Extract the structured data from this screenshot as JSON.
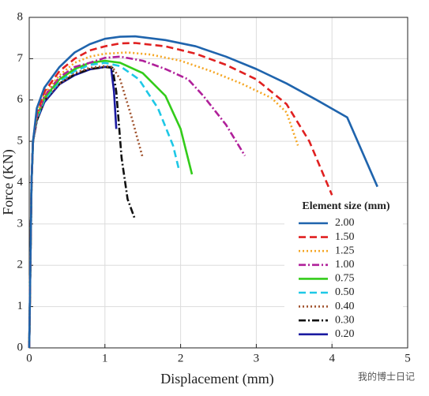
{
  "chart_data": {
    "type": "line",
    "xlabel": "Displacement (mm)",
    "ylabel": "Force (KN)",
    "xlim": [
      0,
      5
    ],
    "ylim": [
      0,
      8
    ],
    "xticks": [
      0,
      1,
      2,
      3,
      4,
      5
    ],
    "yticks": [
      0,
      1,
      2,
      3,
      4,
      5,
      6,
      7,
      8
    ],
    "grid": true,
    "legend_title": "Element size (mm)",
    "legend_position": "lower right",
    "watermark": "我的博士日记",
    "series": [
      {
        "name": "2.00",
        "color": "#1f64ad",
        "style": "solid",
        "x": [
          0,
          0.03,
          0.05,
          0.1,
          0.2,
          0.4,
          0.6,
          0.8,
          1.0,
          1.2,
          1.4,
          1.8,
          2.2,
          2.6,
          3.0,
          3.4,
          3.8,
          4.2,
          4.6
        ],
        "values": [
          0,
          4,
          5,
          5.8,
          6.3,
          6.8,
          7.15,
          7.35,
          7.48,
          7.53,
          7.54,
          7.45,
          7.3,
          7.05,
          6.75,
          6.4,
          6.0,
          5.58,
          3.9
        ]
      },
      {
        "name": "1.50",
        "color": "#e02020",
        "style": "dashed",
        "x": [
          0,
          0.03,
          0.05,
          0.1,
          0.2,
          0.4,
          0.6,
          0.8,
          1.0,
          1.2,
          1.4,
          1.8,
          2.2,
          2.6,
          3.0,
          3.4,
          3.7,
          4.0
        ],
        "values": [
          0,
          4,
          5,
          5.7,
          6.2,
          6.7,
          7.0,
          7.2,
          7.3,
          7.37,
          7.38,
          7.3,
          7.12,
          6.85,
          6.5,
          5.9,
          5.0,
          3.7
        ]
      },
      {
        "name": "1.25",
        "color": "#f5a623",
        "style": "dotted",
        "x": [
          0,
          0.03,
          0.05,
          0.1,
          0.2,
          0.4,
          0.6,
          0.8,
          1.0,
          1.3,
          1.6,
          2.0,
          2.4,
          2.8,
          3.2,
          3.4,
          3.55
        ],
        "values": [
          0,
          4,
          5,
          5.65,
          6.15,
          6.6,
          6.9,
          7.05,
          7.12,
          7.15,
          7.1,
          6.95,
          6.7,
          6.4,
          6.05,
          5.7,
          4.9
        ]
      },
      {
        "name": "1.00",
        "color": "#b0209a",
        "style": "dashdot",
        "x": [
          0,
          0.03,
          0.05,
          0.1,
          0.2,
          0.4,
          0.6,
          0.8,
          1.0,
          1.2,
          1.5,
          1.8,
          2.1,
          2.3,
          2.6,
          2.85
        ],
        "values": [
          0,
          4,
          5,
          5.6,
          6.1,
          6.55,
          6.8,
          6.9,
          7.02,
          7.05,
          6.95,
          6.75,
          6.5,
          6.1,
          5.4,
          4.65
        ]
      },
      {
        "name": "0.75",
        "color": "#33cc1a",
        "style": "solid",
        "x": [
          0,
          0.03,
          0.05,
          0.1,
          0.2,
          0.4,
          0.6,
          0.8,
          1.0,
          1.2,
          1.5,
          1.8,
          2.0,
          2.15
        ],
        "values": [
          0,
          4,
          5,
          5.6,
          6.05,
          6.5,
          6.75,
          6.9,
          6.95,
          6.9,
          6.65,
          6.1,
          5.3,
          4.2
        ]
      },
      {
        "name": "0.50",
        "color": "#1ec8e6",
        "style": "dashed",
        "x": [
          0,
          0.03,
          0.05,
          0.1,
          0.2,
          0.4,
          0.6,
          0.8,
          1.0,
          1.2,
          1.45,
          1.7,
          1.9,
          1.98
        ],
        "values": [
          0,
          4,
          5,
          5.55,
          6.0,
          6.45,
          6.7,
          6.85,
          6.9,
          6.82,
          6.5,
          5.8,
          4.9,
          4.3
        ]
      },
      {
        "name": "0.40",
        "color": "#a0522d",
        "style": "dotted",
        "x": [
          0,
          0.03,
          0.05,
          0.1,
          0.2,
          0.4,
          0.6,
          0.8,
          1.0,
          1.1,
          1.2,
          1.35,
          1.5
        ],
        "values": [
          0,
          4,
          5,
          5.55,
          6.0,
          6.4,
          6.65,
          6.78,
          6.82,
          6.8,
          6.5,
          5.6,
          4.6
        ]
      },
      {
        "name": "0.30",
        "color": "#111111",
        "style": "dashdot",
        "x": [
          0,
          0.03,
          0.05,
          0.1,
          0.2,
          0.4,
          0.6,
          0.8,
          1.0,
          1.1,
          1.15,
          1.22,
          1.3,
          1.4
        ],
        "values": [
          0,
          4,
          5,
          5.5,
          6.0,
          6.4,
          6.62,
          6.75,
          6.8,
          6.78,
          6.2,
          4.6,
          3.6,
          3.1
        ]
      },
      {
        "name": "0.20",
        "color": "#1a1aa0",
        "style": "solid",
        "x": [
          0,
          0.03,
          0.05,
          0.1,
          0.2,
          0.4,
          0.6,
          0.8,
          1.0,
          1.08,
          1.12,
          1.15
        ],
        "values": [
          0,
          4,
          5,
          5.5,
          5.95,
          6.38,
          6.6,
          6.74,
          6.8,
          6.8,
          6.2,
          5.3
        ]
      }
    ]
  }
}
